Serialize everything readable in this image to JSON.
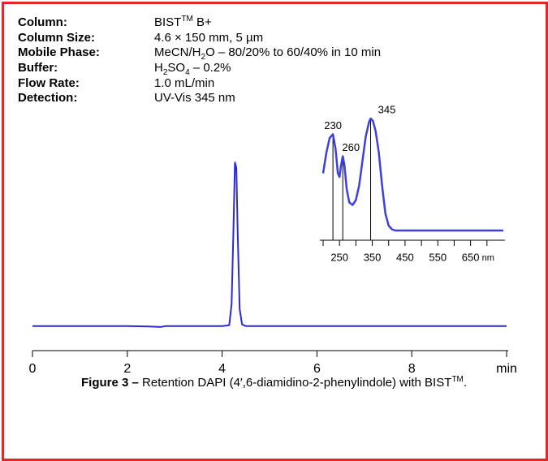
{
  "info": [
    {
      "label": "Column:",
      "value": [
        {
          "text": "BIST"
        },
        {
          "sup": "TM"
        },
        {
          "text": " B+"
        }
      ]
    },
    {
      "label": "Column Size:",
      "value": [
        {
          "text": "4.6 × 150 mm, 5 µm"
        }
      ]
    },
    {
      "label": "Mobile Phase:",
      "value": [
        {
          "text": "MeCN/H"
        },
        {
          "sub": "2"
        },
        {
          "text": "O – 80/20% to 60/40% in 10 min"
        }
      ]
    },
    {
      "label": "Buffer:",
      "value": [
        {
          "text": "H"
        },
        {
          "sub": "2"
        },
        {
          "text": "SO"
        },
        {
          "sub": "4"
        },
        {
          "text": " – 0.2%"
        }
      ]
    },
    {
      "label": "Flow Rate:",
      "value": [
        {
          "text": "1.0 mL/min"
        }
      ]
    },
    {
      "label": "Detection:",
      "value": [
        {
          "text": "UV-Vis 345 nm"
        }
      ]
    }
  ],
  "chart_data": [
    {
      "type": "line",
      "x": [
        0,
        1,
        2,
        2.45,
        2.7,
        2.8,
        3,
        4,
        4.15,
        4.2,
        4.24,
        4.27,
        4.3,
        4.33,
        4.37,
        4.42,
        4.5,
        5,
        6,
        7,
        8,
        9,
        10
      ],
      "series": [
        {
          "color": "#2b2bd6",
          "values": [
            2,
            2,
            2,
            1.8,
            1.5,
            2,
            2,
            2,
            2.5,
            15,
            60,
            98,
            95,
            55,
            12,
            3,
            2,
            2,
            2,
            2,
            2,
            2,
            2
          ]
        }
      ],
      "xlim": [
        0,
        10
      ],
      "ylim": [
        0,
        100
      ],
      "xticks": [
        0,
        2,
        4,
        6,
        8,
        {
          "value": 10,
          "label": "min"
        }
      ]
    },
    {
      "type": "line",
      "x": [
        200,
        210,
        220,
        230,
        238,
        245,
        250,
        255,
        260,
        265,
        272,
        280,
        290,
        300,
        310,
        320,
        330,
        340,
        345,
        352,
        360,
        370,
        380,
        390,
        400,
        410,
        420,
        450,
        500,
        600,
        700,
        750
      ],
      "series": [
        {
          "color": "#3f3fe0",
          "values": [
            55,
            72,
            84,
            87,
            75,
            55,
            52,
            62,
            69,
            62,
            42,
            31,
            29,
            33,
            45,
            65,
            85,
            97,
            100,
            98,
            90,
            72,
            45,
            22,
            12,
            9,
            8,
            8,
            8,
            8,
            8,
            8
          ]
        }
      ],
      "xlim": [
        200,
        750
      ],
      "ylim": [
        0,
        100
      ],
      "xticks": [
        250,
        350,
        450,
        550,
        650
      ],
      "minor_xticks": [
        200,
        300,
        400,
        500,
        600,
        700
      ],
      "x_unit": "nm",
      "peaks": [
        {
          "x": 230,
          "y": 87
        },
        {
          "x": 260,
          "y": 69
        },
        {
          "x": 345,
          "y": 100
        }
      ]
    }
  ],
  "caption": [
    {
      "bold": "Figure 3 –"
    },
    {
      "text": " Retention DAPI (4′,6-diamidino-2-phenylindole) with BIST"
    },
    {
      "sup": "TM"
    },
    {
      "text": "."
    }
  ]
}
